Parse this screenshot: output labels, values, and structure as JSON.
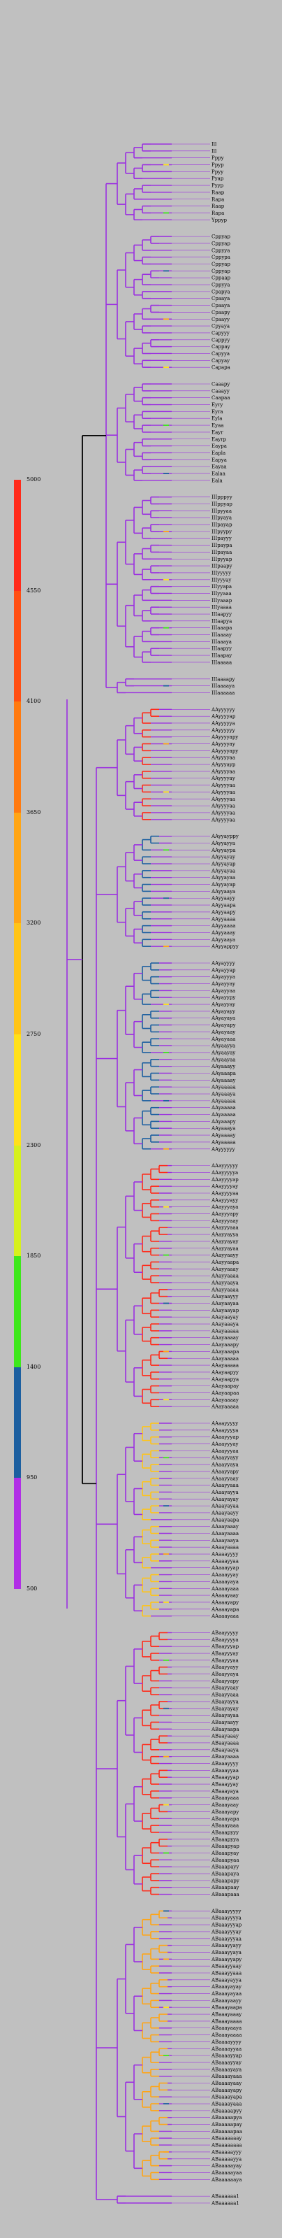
{
  "legend": {
    "ticks": [
      "5000",
      "4550",
      "4100",
      "3650",
      "3200",
      "2750",
      "2300",
      "1850",
      "1400",
      "950",
      "500"
    ],
    "colors": [
      "#ff2a1a",
      "#ff4e12",
      "#ff7a10",
      "#ffa515",
      "#ffc417",
      "#ffe01a",
      "#d6f01e",
      "#3ee81c",
      "#1c5fa0",
      "#b12ee6"
    ]
  },
  "tree": {
    "root_color": "#000000",
    "default_color": "#9b30e0",
    "groups": [
      {
        "name": "top",
        "leaves": [
          "Ill",
          "Ill",
          "Pppy",
          "Ppyp",
          "Ppyy",
          "Pyap",
          "Pyyp",
          "Raap",
          "Rapa",
          "Raap",
          "Rapa",
          "Yppyp"
        ],
        "color": "#9b30e0"
      },
      {
        "name": "cap",
        "leaves": [
          "Cppyap",
          "Cppyap",
          "Cppyya",
          "Cppypa",
          "Cppyap",
          "Cppyap",
          "Cppaap",
          "Cppyya",
          "Cpapya",
          "Cpaaya",
          "Cpaaya",
          "Cpaapy",
          "Cpaayy",
          "Cpyaya",
          "Capyyy",
          "Cappyy",
          "Cappay",
          "Capyya",
          "Capyay",
          "Capapa"
        ],
        "color": "#9b30e0"
      },
      {
        "name": "caa",
        "leaves": [
          "Caaapy",
          "Caaayy",
          "Caapaa",
          "Eyry",
          "Eyra",
          "Eyla",
          "Eyaa",
          "Eayr",
          "Eayrp",
          "Eaypa",
          "Eapla",
          "Eapya",
          "Eayaa",
          "Ealaa",
          "Eala"
        ],
        "color": "#9b30e0"
      },
      {
        "name": "iii",
        "leaves": [
          "IIIpppyy",
          "IIIppyap",
          "IIIpyyaa",
          "IIIpyaya",
          "IIIpayap",
          "IIIpyypy",
          "IIIpayyy",
          "IIIpaypa",
          "IIIpayaa",
          "IIIpyyap",
          "IIIpaapy",
          "IIIyyyyy",
          "IIIyyyay",
          "IIIyyapa",
          "IIIyyaaa",
          "IIIyaaap",
          "IIIyaaaa",
          "IIIaapyy",
          "IIIaapya",
          "IIIaaapa",
          "IIIaaaay",
          "IIIaaaya",
          "IIIaapyy",
          "IIIaapay",
          "IIIaaaaa"
        ],
        "color": "#9b30e0"
      },
      {
        "name": "iiia",
        "leaves": [
          "IIIaaaapy",
          "IIIaaaaya",
          "IIIaaaaaa"
        ],
        "color": "#9b30e0"
      },
      {
        "name": "aa1",
        "leaves": [
          "AAyyyyyy",
          "AAyyyyap",
          "AAyyyyya",
          "AAyyyyyy",
          "AAyyyyapy",
          "AAyyyyay",
          "AAyyyyapy",
          "AAyyyyaa",
          "AAyyyayp",
          "AAyyyyaa",
          "AAyyyyay",
          "AAyyyyaa",
          "AAyyyyaa",
          "AAyyyyaa",
          "AAyyyyaa",
          "AAyyyyaa",
          "AAyyyyaa"
        ],
        "color": "#ff2a1a"
      },
      {
        "name": "aa2",
        "leaves": [
          "AAyyayppy",
          "AAyyayya",
          "AAyyaypa",
          "AAyyayay",
          "AAyyayap",
          "AAyyayaa",
          "AAyyayaa",
          "AAyyayap",
          "AAyyaaya",
          "AAyyaayy",
          "AAyyaapa",
          "AAyyaapy",
          "AAyyaaaa",
          "AAyyaaaa",
          "AAyyaaay",
          "AAyyaaya",
          "AAyyappyy"
        ],
        "color": "#1c5fa0"
      },
      {
        "name": "aa3",
        "leaves": [
          "AAyayyyy",
          "AAyayyap",
          "AAyayyya",
          "AAyayyay",
          "AAyayyaa",
          "AAyayypy",
          "AAyayyay",
          "AAyayayy",
          "AAyayaya",
          "AAyayapy",
          "AAyayaay",
          "AAyayaaa",
          "AAyaayya",
          "AAyaayay",
          "AAyaayaa",
          "AAyaaayy",
          "AAyaaapa",
          "AAyaaaay",
          "AAyaaaaa",
          "AAyaaaya",
          "AAyaaaaa",
          "AAyaaaaa",
          "AAyaaaaa",
          "AAyaaapy",
          "AAyaaaya",
          "AAyaaaay",
          "AAyaaaaa",
          "AAyyyyyy"
        ],
        "color": "#1c5fa0"
      },
      {
        "name": "aa4",
        "leaves": [
          "AAayyyyyy",
          "AAayyyyya",
          "AAayyyyap",
          "AAayyyyay",
          "AAayyyyaa",
          "AAayyyayy",
          "AAayyyaya",
          "AAayyyapy",
          "AAayyyaay",
          "AAayyyaaa",
          "AAayyayya",
          "AAayyayay",
          "AAayyayaa",
          "AAayyaayy",
          "AAayyaapa",
          "AAayyaaay",
          "AAayyaaaa",
          "AAayyaaya",
          "AAayyaaaa",
          "AAayaayyy",
          "AAayaayaa",
          "AAayaayap",
          "AAayaayay",
          "AAayaaaya",
          "AAayaaaaa",
          "AAayaaaay",
          "AAayaaapy",
          "AAayaaapa",
          "AAayaaaaa",
          "AAayaaaaa",
          "AAayaapyy",
          "AAayaapya",
          "AAayaapay",
          "AAayaapaa",
          "AAayaaaay",
          "AAayaaaaa"
        ],
        "color": "#ff2a1a"
      },
      {
        "name": "aa5",
        "leaves": [
          "AAaayyyyy",
          "AAaayyyya",
          "AAaayyyap",
          "AAaayyyay",
          "AAaayyyaa",
          "AAaayyayy",
          "AAaayyaya",
          "AAaayyapy",
          "AAaayyaay",
          "AAaayyaaa",
          "AAaayayya",
          "AAaayayay",
          "AAaayayaa",
          "AAaayaayy",
          "AAaayaapa",
          "AAaayaaay",
          "AAaayaaaa",
          "AAaayaaya",
          "AAaayaaaa",
          "AAaaayyyy",
          "AAaaayyaa",
          "AAaaayyap",
          "AAaaayyay",
          "AAaaayaya",
          "AAaaayaaa",
          "AAaaayaay",
          "AAaaayapy",
          "AAaaayapa",
          "AAaaayaaa"
        ],
        "color": "#ffc417"
      },
      {
        "name": "ab1",
        "leaves": [
          "ABaayyyyy",
          "ABaayyyya",
          "ABaayyyap",
          "ABaayyyay",
          "ABaayyyaa",
          "ABaayyayy",
          "ABaayyaya",
          "ABaayyapy",
          "ABaayyaay",
          "ABaayyaaa",
          "ABaayayya",
          "ABaayayay",
          "ABaayayaa",
          "ABaayaayy",
          "ABaayaapa",
          "ABaayaaay",
          "ABaayaaaa",
          "ABaayaaya",
          "ABaayaaaa",
          "ABaaayyyy",
          "ABaaayyaa",
          "ABaaayyap",
          "ABaaayyay",
          "ABaaayaya",
          "ABaaayaaa",
          "ABaaayaay",
          "ABaaayapy",
          "ABaaayapa",
          "ABaaayaaa",
          "ABaaapyyy",
          "ABaaapyya",
          "ABaaapyap",
          "ABaaapyay",
          "ABaaapyaa",
          "ABaaapayy",
          "ABaaapaya",
          "ABaaapapy",
          "ABaaapaay",
          "ABaaapaaa"
        ],
        "color": "#ff2a1a"
      },
      {
        "name": "ab2",
        "leaves": [
          "ABaaayyyyy",
          "ABaaayyyya",
          "ABaaayyyap",
          "ABaaayyyay",
          "ABaaayyyaa",
          "ABaaayyayy",
          "ABaaayyaya",
          "ABaaayyapy",
          "ABaaayyaay",
          "ABaaayyaaa",
          "ABaaayayya",
          "ABaaayayay",
          "ABaaayayaa",
          "ABaaayaayy",
          "ABaaayaapa",
          "ABaaayaaay",
          "ABaaayaaaa",
          "ABaaayaaya",
          "ABaaayaaaa",
          "ABaaaayyyy",
          "ABaaaayyaa",
          "ABaaaayyap",
          "ABaaaayyay",
          "ABaaaayaya",
          "ABaaaayaaa",
          "ABaaaayaay",
          "ABaaaayapy",
          "ABaaaayapa",
          "ABaaaayaaa",
          "ABaaaaapyy",
          "ABaaaaapya",
          "ABaaaaapay",
          "ABaaaaapaa",
          "ABaaaaaaay",
          "ABaaaaaaaa",
          "ABaaaaayyy",
          "ABaaaaayya",
          "ABaaaaayay",
          "ABaaaaayaa",
          "ABaaaaaaya"
        ],
        "color": "#ffa515"
      },
      {
        "name": "ab3",
        "leaves": [
          "ABaaaaaa1",
          "ABaaaaaa1"
        ],
        "color": "#9b30e0"
      }
    ]
  }
}
